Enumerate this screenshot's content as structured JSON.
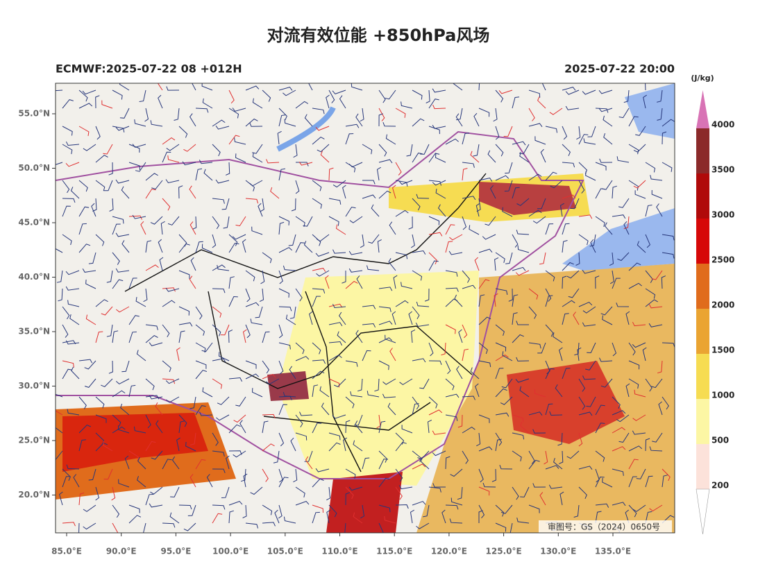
{
  "header": {
    "title": "对流有效位能 +850hPa风场",
    "left_label": "ECMWF:2025-07-22 08 +012H",
    "right_label": "2025-07-22 20:00"
  },
  "map": {
    "lat_ticks": [
      "55.0°N",
      "50.0°N",
      "45.0°N",
      "40.0°N",
      "35.0°N",
      "30.0°N",
      "25.0°N",
      "20.0°N"
    ],
    "lon_ticks": [
      "85.0°E",
      "90.0°E",
      "95.0°E",
      "100.0°E",
      "105.0°E",
      "110.0°E",
      "115.0°E",
      "120.0°E",
      "125.0°E",
      "130.0°E",
      "135.0°E"
    ],
    "stamp": "审图号：GS（2024）0650号"
  },
  "colorbar": {
    "unit": "(J/kg)",
    "labels": [
      "4000",
      "3500",
      "3000",
      "2500",
      "2000",
      "1500",
      "1000",
      "500",
      "200"
    ],
    "colors": [
      "#8b2a2a",
      "#b00a0a",
      "#d60808",
      "#e06c1c",
      "#eaa432",
      "#f6dc52",
      "#fcf6a4",
      "#fce2da"
    ],
    "top_color": "#d873b5"
  }
}
